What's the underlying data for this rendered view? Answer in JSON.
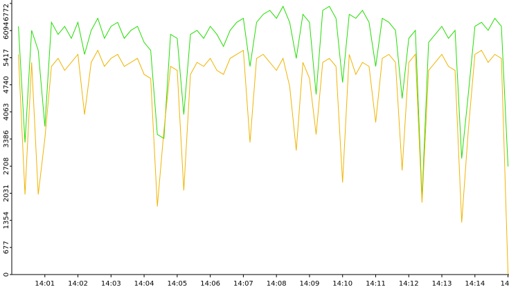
{
  "chart_data": {
    "type": "line",
    "x": [
      0.2,
      0.4,
      0.6,
      0.8,
      1.0,
      1.2,
      1.4,
      1.6,
      1.8,
      2.0,
      2.2,
      2.4,
      2.6,
      2.8,
      3.0,
      3.2,
      3.4,
      3.6,
      3.8,
      4.0,
      4.2,
      4.4,
      4.6,
      4.8,
      5.0,
      5.2,
      5.4,
      5.6,
      5.8,
      6.0,
      6.2,
      6.4,
      6.6,
      6.8,
      7.0,
      7.2,
      7.4,
      7.6,
      7.8,
      8.0,
      8.2,
      8.4,
      8.6,
      8.8,
      9.0,
      9.2,
      9.4,
      9.6,
      9.8,
      10.0,
      10.2,
      10.4,
      10.6,
      10.8,
      11.0,
      11.2,
      11.4,
      11.6,
      11.8,
      12.0,
      12.2,
      12.4,
      12.6,
      12.8,
      13.0,
      13.2,
      13.4,
      13.6,
      13.8,
      14.0,
      14.2,
      14.4,
      14.6,
      14.8,
      15.0
    ],
    "series": [
      {
        "color": "#22dd00",
        "values": [
          6200,
          3300,
          6100,
          5600,
          3700,
          6300,
          6000,
          6200,
          5900,
          6300,
          5500,
          6100,
          6400,
          5900,
          6200,
          6300,
          5900,
          6100,
          6200,
          5800,
          5600,
          3500,
          3400,
          6000,
          5900,
          4000,
          6000,
          6100,
          5900,
          6200,
          6000,
          5700,
          6100,
          6300,
          6400,
          5200,
          6300,
          6500,
          6600,
          6400,
          6700,
          6300,
          5400,
          6500,
          6300,
          4500,
          6600,
          6700,
          6400,
          4800,
          6500,
          6400,
          6600,
          6300,
          5200,
          6400,
          6300,
          6100,
          4400,
          5900,
          6100,
          1900,
          5800,
          6000,
          6200,
          5900,
          6100,
          2900,
          4500,
          6200,
          6300,
          6100,
          6400,
          6200,
          2700
        ]
      },
      {
        "color": "#f0b400",
        "values": [
          5500,
          2000,
          5300,
          2000,
          3400,
          5200,
          5400,
          5100,
          5300,
          5500,
          4000,
          5300,
          5600,
          5200,
          5400,
          5500,
          5200,
          5300,
          5400,
          5000,
          4900,
          1700,
          3600,
          5200,
          5100,
          2100,
          5000,
          5300,
          5200,
          5400,
          5100,
          5000,
          5400,
          5500,
          5600,
          3300,
          5400,
          5500,
          5300,
          5100,
          5400,
          4700,
          3100,
          5300,
          4900,
          3500,
          5300,
          5400,
          5200,
          2300,
          5500,
          5000,
          5300,
          5200,
          3800,
          5400,
          5500,
          5300,
          2600,
          5300,
          5500,
          1800,
          5100,
          5300,
          5500,
          5200,
          5100,
          1300,
          3600,
          5500,
          5600,
          5300,
          5500,
          5400,
          0
        ]
      }
    ],
    "xlim": [
      0,
      15.03
    ],
    "xticks": [
      {
        "value": 1,
        "label": "14:01"
      },
      {
        "value": 2,
        "label": "14:02"
      },
      {
        "value": 3,
        "label": "14:03"
      },
      {
        "value": 4,
        "label": "14:04"
      },
      {
        "value": 5,
        "label": "14:05"
      },
      {
        "value": 6,
        "label": "14:06"
      },
      {
        "value": 7,
        "label": "14:07"
      },
      {
        "value": 8,
        "label": "14:08"
      },
      {
        "value": 9,
        "label": "14:09"
      },
      {
        "value": 10,
        "label": "14:10"
      },
      {
        "value": 11,
        "label": "14:11"
      },
      {
        "value": 12,
        "label": "14:12"
      },
      {
        "value": 13,
        "label": "14:13"
      },
      {
        "value": 14,
        "label": "14:14"
      },
      {
        "value": 15,
        "label": "14"
      }
    ],
    "ylim": [
      0,
      6772
    ],
    "yticks": [
      0,
      677,
      1354,
      2031,
      2708,
      3386,
      4063,
      4740,
      5417,
      6094,
      6772
    ]
  }
}
